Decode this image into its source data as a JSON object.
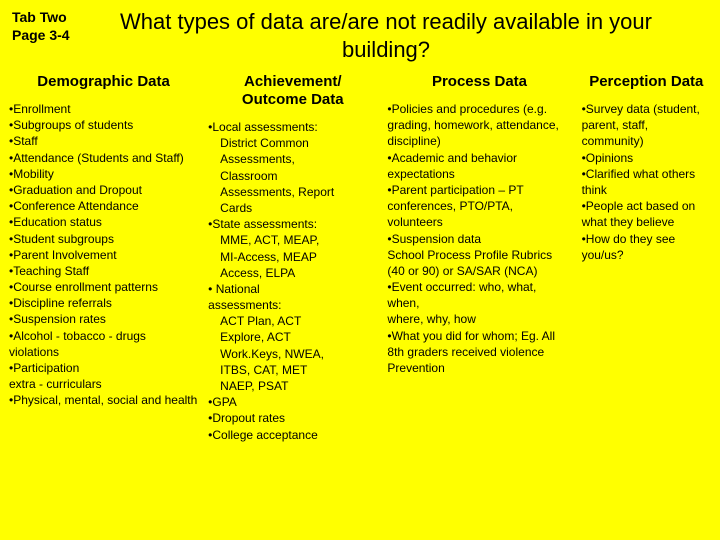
{
  "header": {
    "tab_label": "Tab Two",
    "page_label": "Page 3-4",
    "title": "What types of data are/are not readily available in your building?"
  },
  "columns": [
    {
      "heading": "Demographic Data",
      "lines": [
        "•Enrollment",
        "•Subgroups of students",
        "•Staff",
        "•Attendance (Students and Staff)",
        "•Mobility",
        "•Graduation and Dropout",
        "•Conference Attendance",
        "•Education status",
        "•Student subgroups",
        "•Parent Involvement",
        "•Teaching Staff",
        "•Course enrollment patterns",
        "•Discipline referrals",
        "•Suspension rates",
        "•Alcohol - tobacco - drugs violations",
        "•Participation",
        "extra - curriculars",
        "•Physical, mental, social and health"
      ]
    },
    {
      "heading": "Achievement/ Outcome Data",
      "lines": [
        "•Local assessments:",
        "  District Common",
        "  Assessments,",
        "  Classroom",
        "  Assessments, Report",
        "  Cards",
        "•State assessments:",
        "  MME, ACT, MEAP,",
        "  MI-Access, MEAP",
        "  Access, ELPA",
        "• National",
        "assessments:",
        "  ACT Plan, ACT",
        "  Explore, ACT",
        "  Work.Keys, NWEA,",
        "  ITBS, CAT, MET",
        "  NAEP, PSAT",
        "•GPA",
        "•Dropout rates",
        "•College acceptance"
      ]
    },
    {
      "heading": "Process Data",
      "lines": [
        "•Policies and procedures (e.g. grading, homework, attendance, discipline)",
        "•Academic and behavior expectations",
        "•Parent participation – PT conferences, PTO/PTA, volunteers",
        "•Suspension data",
        "School Process Profile Rubrics",
        "(40 or 90) or SA/SAR (NCA)",
        "•Event occurred: who, what, when,",
        "where, why, how",
        "•What you did for whom; Eg. All 8th graders received violence Prevention"
      ]
    },
    {
      "heading": "Perception Data",
      "lines": [
        "•Survey data (student, parent, staff, community)",
        "•Opinions",
        "•Clarified what others think",
        "•People act based on what they believe",
        "•How do they see you/us?"
      ]
    }
  ]
}
